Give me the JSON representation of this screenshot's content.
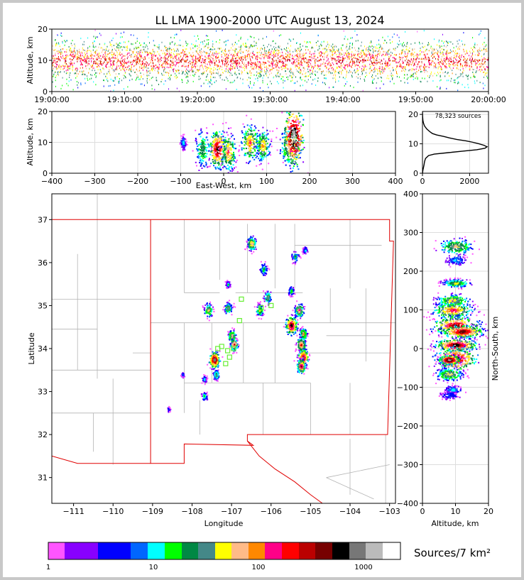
{
  "chart_data": {
    "type": "heatmap",
    "title": "LL LMA 1900-2000 UTC August 13, 2024",
    "colorbar_label": "Sources/7 km²",
    "source_count_label": "78,323 sources",
    "colors": [
      "#ff55ff",
      "#8800ff",
      "#0000ff",
      "#0066ff",
      "#00ffff",
      "#00ff00",
      "#008844",
      "#448888",
      "#ffff00",
      "#ffbb88",
      "#ff8800",
      "#ff0088",
      "#ff0000",
      "#bb0000",
      "#770000",
      "#000000",
      "#777777",
      "#bbbbbb",
      "#ffffff"
    ],
    "colorbar_ticks": [
      {
        "v": 1,
        "label": "1"
      },
      {
        "v": 10,
        "label": "10"
      },
      {
        "v": 100,
        "label": "100"
      },
      {
        "v": 1000,
        "label": "1000"
      }
    ],
    "colorbar_range": [
      1,
      2000
    ],
    "time_height": {
      "ylabel": "Altitude, km",
      "xlim": [
        0,
        60
      ],
      "ylim": [
        0,
        20
      ],
      "xticks": [
        {
          "v": 0,
          "label": "19:00:00"
        },
        {
          "v": 10,
          "label": "19:10:00"
        },
        {
          "v": 20,
          "label": "19:20:00"
        },
        {
          "v": 30,
          "label": "19:30:00"
        },
        {
          "v": 40,
          "label": "19:40:00"
        },
        {
          "v": 50,
          "label": "19:50:00"
        },
        {
          "v": 60,
          "label": "20:00:00"
        }
      ],
      "yticks": [
        0,
        10,
        20
      ]
    },
    "ew_height": {
      "ylabel": "Altitude, km",
      "xlabel": "East-West, km",
      "xlim": [
        -400,
        400
      ],
      "ylim": [
        0,
        20
      ],
      "xticks": [
        -400,
        -300,
        -200,
        -100,
        0,
        100,
        200,
        300,
        400
      ],
      "yticks": [
        0,
        10,
        20
      ],
      "clusters": [
        {
          "x": -95,
          "z": 10,
          "sx": 3,
          "sz": 1,
          "peak": 0.2
        },
        {
          "x": -50,
          "z": 8,
          "sx": 8,
          "sz": 3,
          "peak": 0.4
        },
        {
          "x": -15,
          "z": 8,
          "sx": 10,
          "sz": 3,
          "peak": 0.85
        },
        {
          "x": 10,
          "z": 7,
          "sx": 8,
          "sz": 3,
          "peak": 0.6
        },
        {
          "x": 60,
          "z": 10,
          "sx": 10,
          "sz": 3,
          "peak": 0.6
        },
        {
          "x": 90,
          "z": 9,
          "sx": 8,
          "sz": 2.5,
          "peak": 0.55
        },
        {
          "x": 155,
          "z": 9,
          "sx": 12,
          "sz": 3,
          "peak": 0.6
        },
        {
          "x": 162,
          "z": 12,
          "sx": 12,
          "sz": 5,
          "peak": 1.0
        }
      ]
    },
    "altitude_histogram": {
      "xlim": [
        0,
        2800
      ],
      "ylim": [
        0,
        21
      ],
      "xticks": [
        0,
        2000
      ],
      "yticks": [
        0,
        10,
        20
      ],
      "profile": [
        [
          0,
          2
        ],
        [
          1,
          18
        ],
        [
          2,
          45
        ],
        [
          3,
          70
        ],
        [
          4,
          90
        ],
        [
          5,
          130
        ],
        [
          6,
          260
        ],
        [
          6.5,
          500
        ],
        [
          7,
          1100
        ],
        [
          7.5,
          1700
        ],
        [
          8,
          2300
        ],
        [
          8.5,
          2650
        ],
        [
          9,
          2740
        ],
        [
          9.5,
          2600
        ],
        [
          10,
          2400
        ],
        [
          10.5,
          2150
        ],
        [
          11,
          1850
        ],
        [
          11.5,
          1450
        ],
        [
          12,
          1150
        ],
        [
          12.5,
          900
        ],
        [
          13,
          600
        ],
        [
          13.5,
          420
        ],
        [
          14,
          330
        ],
        [
          15,
          190
        ],
        [
          16,
          90
        ],
        [
          17,
          45
        ],
        [
          18,
          18
        ],
        [
          19,
          8
        ],
        [
          20,
          3
        ],
        [
          21,
          1
        ]
      ]
    },
    "plan_view": {
      "xlabel": "Longitude",
      "ylabel": "Latitude",
      "xlim": [
        -111.55,
        -102.85
      ],
      "ylim": [
        30.4,
        37.6
      ],
      "xticks": [
        -111,
        -110,
        -109,
        -108,
        -107,
        -106,
        -105,
        -104,
        -103
      ],
      "yticks": [
        31,
        32,
        33,
        34,
        35,
        36,
        37
      ],
      "clusters": [
        {
          "lon": -106.5,
          "lat": 36.45,
          "s": 0.06,
          "peak": 0.55
        },
        {
          "lon": -106.2,
          "lat": 35.85,
          "s": 0.05,
          "peak": 0.3
        },
        {
          "lon": -105.4,
          "lat": 36.15,
          "s": 0.05,
          "peak": 0.3
        },
        {
          "lon": -105.15,
          "lat": 36.3,
          "s": 0.03,
          "peak": 0.2
        },
        {
          "lon": -107.1,
          "lat": 35.5,
          "s": 0.03,
          "peak": 0.25
        },
        {
          "lon": -107.6,
          "lat": 34.9,
          "s": 0.06,
          "peak": 0.45
        },
        {
          "lon": -107.1,
          "lat": 34.95,
          "s": 0.05,
          "peak": 0.45
        },
        {
          "lon": -106.1,
          "lat": 35.2,
          "s": 0.05,
          "peak": 0.45
        },
        {
          "lon": -106.3,
          "lat": 34.9,
          "s": 0.05,
          "peak": 0.45
        },
        {
          "lon": -105.5,
          "lat": 35.35,
          "s": 0.04,
          "peak": 0.3
        },
        {
          "lon": -105.3,
          "lat": 34.9,
          "s": 0.06,
          "peak": 0.6
        },
        {
          "lon": -105.5,
          "lat": 34.55,
          "s": 0.08,
          "peak": 0.85
        },
        {
          "lon": -105.2,
          "lat": 34.35,
          "s": 0.05,
          "peak": 0.55
        },
        {
          "lon": -105.25,
          "lat": 34.1,
          "s": 0.06,
          "peak": 0.7
        },
        {
          "lon": -105.2,
          "lat": 33.8,
          "s": 0.07,
          "peak": 0.9
        },
        {
          "lon": -105.25,
          "lat": 33.6,
          "s": 0.06,
          "peak": 0.75
        },
        {
          "lon": -107.0,
          "lat": 34.3,
          "s": 0.05,
          "peak": 0.6
        },
        {
          "lon": -106.95,
          "lat": 34.1,
          "s": 0.05,
          "peak": 0.7
        },
        {
          "lon": -107.45,
          "lat": 33.75,
          "s": 0.07,
          "peak": 0.95
        },
        {
          "lon": -107.4,
          "lat": 33.4,
          "s": 0.04,
          "peak": 0.4
        },
        {
          "lon": -107.7,
          "lat": 33.3,
          "s": 0.03,
          "peak": 0.2
        },
        {
          "lon": -107.7,
          "lat": 32.9,
          "s": 0.04,
          "peak": 0.25
        },
        {
          "lon": -108.25,
          "lat": 33.4,
          "s": 0.02,
          "peak": 0.12
        },
        {
          "lon": -108.6,
          "lat": 32.6,
          "s": 0.02,
          "peak": 0.1
        }
      ],
      "stations": [
        [
          -106.75,
          35.15
        ],
        [
          -106.25,
          34.95
        ],
        [
          -106.0,
          35.0
        ],
        [
          -106.8,
          34.65
        ],
        [
          -107.25,
          34.05
        ],
        [
          -107.1,
          33.95
        ],
        [
          -106.95,
          34.0
        ],
        [
          -107.05,
          33.8
        ],
        [
          -107.15,
          33.65
        ],
        [
          -107.35,
          34.0
        ]
      ]
    },
    "ns_height": {
      "ylabel": "North-South, km",
      "xlabel": "Altitude, km",
      "xlim": [
        0,
        20
      ],
      "ylim": [
        -400,
        400
      ],
      "xticks": [
        0,
        10,
        20
      ],
      "yticks": [
        -400,
        -300,
        -200,
        -100,
        0,
        100,
        200,
        300,
        400
      ],
      "clusters": [
        {
          "y": 265,
          "z": 10,
          "sy": 10,
          "sz": 2.5,
          "peak": 0.5
        },
        {
          "y": 230,
          "z": 10,
          "sy": 6,
          "sz": 1.5,
          "peak": 0.2
        },
        {
          "y": 170,
          "z": 10,
          "sy": 5,
          "sz": 2,
          "peak": 0.45
        },
        {
          "y": 125,
          "z": 9,
          "sy": 8,
          "sz": 2.5,
          "peak": 0.5
        },
        {
          "y": 100,
          "z": 9,
          "sy": 10,
          "sz": 3,
          "peak": 0.65
        },
        {
          "y": 60,
          "z": 10,
          "sy": 12,
          "sz": 3.5,
          "peak": 0.8
        },
        {
          "y": 45,
          "z": 12,
          "sy": 8,
          "sz": 3,
          "peak": 0.85
        },
        {
          "y": 10,
          "z": 10,
          "sy": 8,
          "sz": 3,
          "peak": 0.9
        },
        {
          "y": -25,
          "z": 10,
          "sy": 15,
          "sz": 3,
          "peak": 0.85
        },
        {
          "y": -28,
          "z": 8,
          "sy": 6,
          "sz": 1.5,
          "peak": 1.0
        },
        {
          "y": -65,
          "z": 8,
          "sy": 8,
          "sz": 2,
          "peak": 0.5
        },
        {
          "y": -105,
          "z": 9,
          "sy": 5,
          "sz": 1.2,
          "peak": 0.2
        },
        {
          "y": -120,
          "z": 8,
          "sy": 5,
          "sz": 1.2,
          "peak": 0.15
        }
      ]
    }
  }
}
